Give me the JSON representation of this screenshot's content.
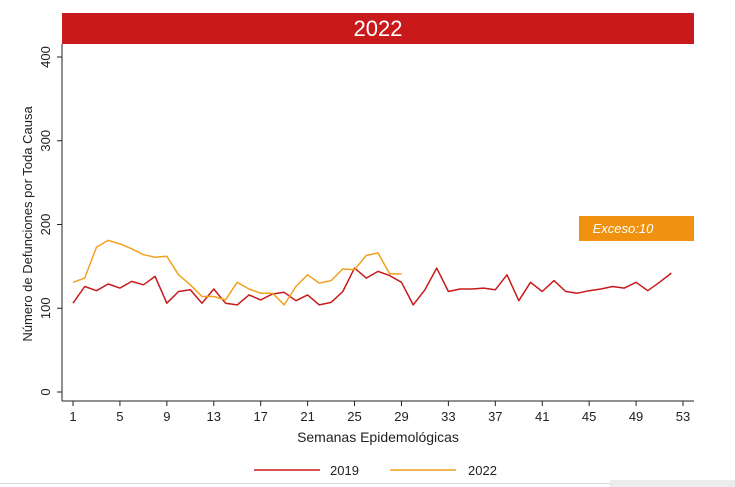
{
  "chart_data": {
    "type": "line",
    "title": "2022",
    "xlabel": "Semanas Epidemológicas",
    "ylabel": "Número de Defunciones por Toda Causa",
    "xlim": [
      0,
      54
    ],
    "ylim": [
      0,
      400
    ],
    "x_ticks": [
      1,
      5,
      9,
      13,
      17,
      21,
      25,
      29,
      33,
      37,
      41,
      45,
      49,
      53
    ],
    "y_ticks": [
      0,
      100,
      200,
      300,
      400
    ],
    "annotation": "Exceso:10",
    "legend_position": "bottom",
    "series": [
      {
        "name": "2019",
        "color": "#c8191b",
        "x": [
          1,
          2,
          3,
          4,
          5,
          6,
          7,
          8,
          9,
          10,
          11,
          12,
          13,
          14,
          15,
          16,
          17,
          18,
          19,
          20,
          21,
          22,
          23,
          24,
          25,
          26,
          27,
          28,
          29,
          30,
          31,
          32,
          33,
          34,
          35,
          36,
          37,
          38,
          39,
          40,
          41,
          42,
          43,
          44,
          45,
          46,
          47,
          48,
          49,
          50,
          51,
          52
        ],
        "values": [
          106,
          126,
          121,
          129,
          124,
          132,
          128,
          138,
          106,
          120,
          122,
          106,
          123,
          106,
          104,
          116,
          110,
          117,
          119,
          109,
          116,
          104,
          107,
          120,
          148,
          136,
          144,
          139,
          131,
          104,
          122,
          148,
          120,
          123,
          123,
          124,
          122,
          140,
          109,
          131,
          120,
          133,
          120,
          118,
          121,
          123,
          126,
          124,
          131,
          121,
          131,
          142
        ]
      },
      {
        "name": "2022",
        "color": "#f0a21e",
        "x": [
          1,
          2,
          3,
          4,
          5,
          6,
          7,
          8,
          9,
          10,
          11,
          12,
          13,
          14,
          15,
          16,
          17,
          18,
          19,
          20,
          21,
          22,
          23,
          24,
          25,
          26,
          27,
          28,
          29
        ],
        "values": [
          131,
          136,
          173,
          181,
          177,
          171,
          164,
          161,
          162,
          140,
          128,
          114,
          114,
          110,
          131,
          123,
          118,
          118,
          104,
          126,
          140,
          130,
          133,
          147,
          146,
          163,
          166,
          141,
          141
        ]
      }
    ]
  }
}
